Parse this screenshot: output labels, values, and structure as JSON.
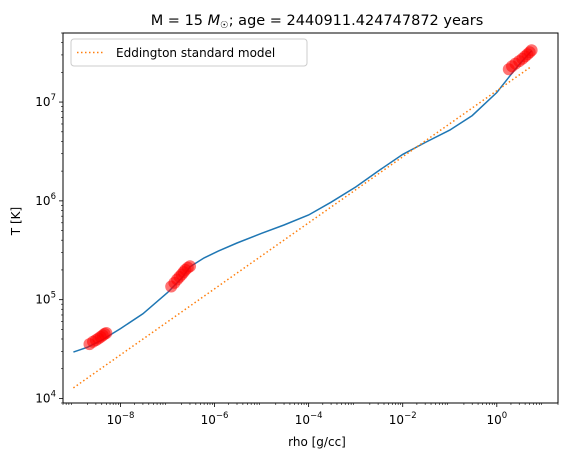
{
  "chart_data": {
    "type": "line",
    "title": "M = 15 M☉ ; age = 2440911.424747872 years",
    "title_parts": {
      "prefix": "M = 15 ",
      "symbol_italic": "M",
      "symbol_sub": "☉",
      "suffix": "; age = 2440911.424747872 years"
    },
    "xlabel": "rho [g/cc]",
    "ylabel": "T [K]",
    "xscale": "log",
    "yscale": "log",
    "xlim": [
      6e-10,
      20
    ],
    "ylim": [
      9000,
      50000000
    ],
    "grid": false,
    "legend": {
      "placement": "top-left",
      "entries": [
        "Eddington standard model"
      ]
    },
    "x_ticks": [
      {
        "value": 1e-08,
        "base": "10",
        "exp": "−8"
      },
      {
        "value": 1e-06,
        "base": "10",
        "exp": "−6"
      },
      {
        "value": 0.0001,
        "base": "10",
        "exp": "−4"
      },
      {
        "value": 0.01,
        "base": "10",
        "exp": "−2"
      },
      {
        "value": 1,
        "base": "10",
        "exp": "0"
      }
    ],
    "y_ticks": [
      {
        "value": 10000,
        "base": "10",
        "exp": "4"
      },
      {
        "value": 100000,
        "base": "10",
        "exp": "5"
      },
      {
        "value": 1000000,
        "base": "10",
        "exp": "6"
      },
      {
        "value": 10000000,
        "base": "10",
        "exp": "7"
      }
    ],
    "series": [
      {
        "style": "solid",
        "color": "#1f77b4",
        "x": [
          1e-09,
          2e-09,
          4e-09,
          1e-08,
          3e-08,
          1e-07,
          2e-07,
          3e-07,
          6e-07,
          1.2e-06,
          3e-06,
          1e-05,
          3e-05,
          0.0001,
          0.0003,
          0.001,
          0.003,
          0.01,
          0.03,
          0.1,
          0.3,
          1,
          2,
          3,
          5.5
        ],
        "y": [
          29500,
          33000,
          39000,
          51000,
          72000,
          118000,
          165000,
          215000,
          265000,
          310000,
          375000,
          470000,
          570000,
          720000,
          970000,
          1380000,
          2000000,
          2950000,
          3900000,
          5200000,
          7300000,
          12500000,
          19000000,
          24000000,
          33000000
        ]
      },
      {
        "name": "Eddington standard model",
        "style": "dotted",
        "color": "#ff7f0e",
        "x": [
          1e-09,
          5.5
        ],
        "y": [
          12800,
          23000000
        ]
      }
    ],
    "highlights": {
      "color": "#ff0000",
      "x": [
        2.2e-09,
        2.6e-09,
        3e-09,
        3.4e-09,
        3.8e-09,
        4.2e-09,
        4.6e-09,
        5e-09,
        1.2e-07,
        1.4e-07,
        1.6e-07,
        1.8e-07,
        2e-07,
        2.2e-07,
        2.4e-07,
        2.7e-07,
        3e-07,
        1.8,
        2.1,
        2.5,
        3,
        3.5,
        4,
        4.5,
        5,
        5.5
      ],
      "y": [
        35500,
        37500,
        39000,
        40500,
        42000,
        43500,
        45000,
        46000,
        136000,
        148000,
        160000,
        170000,
        180000,
        190000,
        200000,
        210000,
        218000,
        21500000,
        23000000,
        24500000,
        26000000,
        27500000,
        29000000,
        30500000,
        32000000,
        33500000
      ]
    }
  }
}
